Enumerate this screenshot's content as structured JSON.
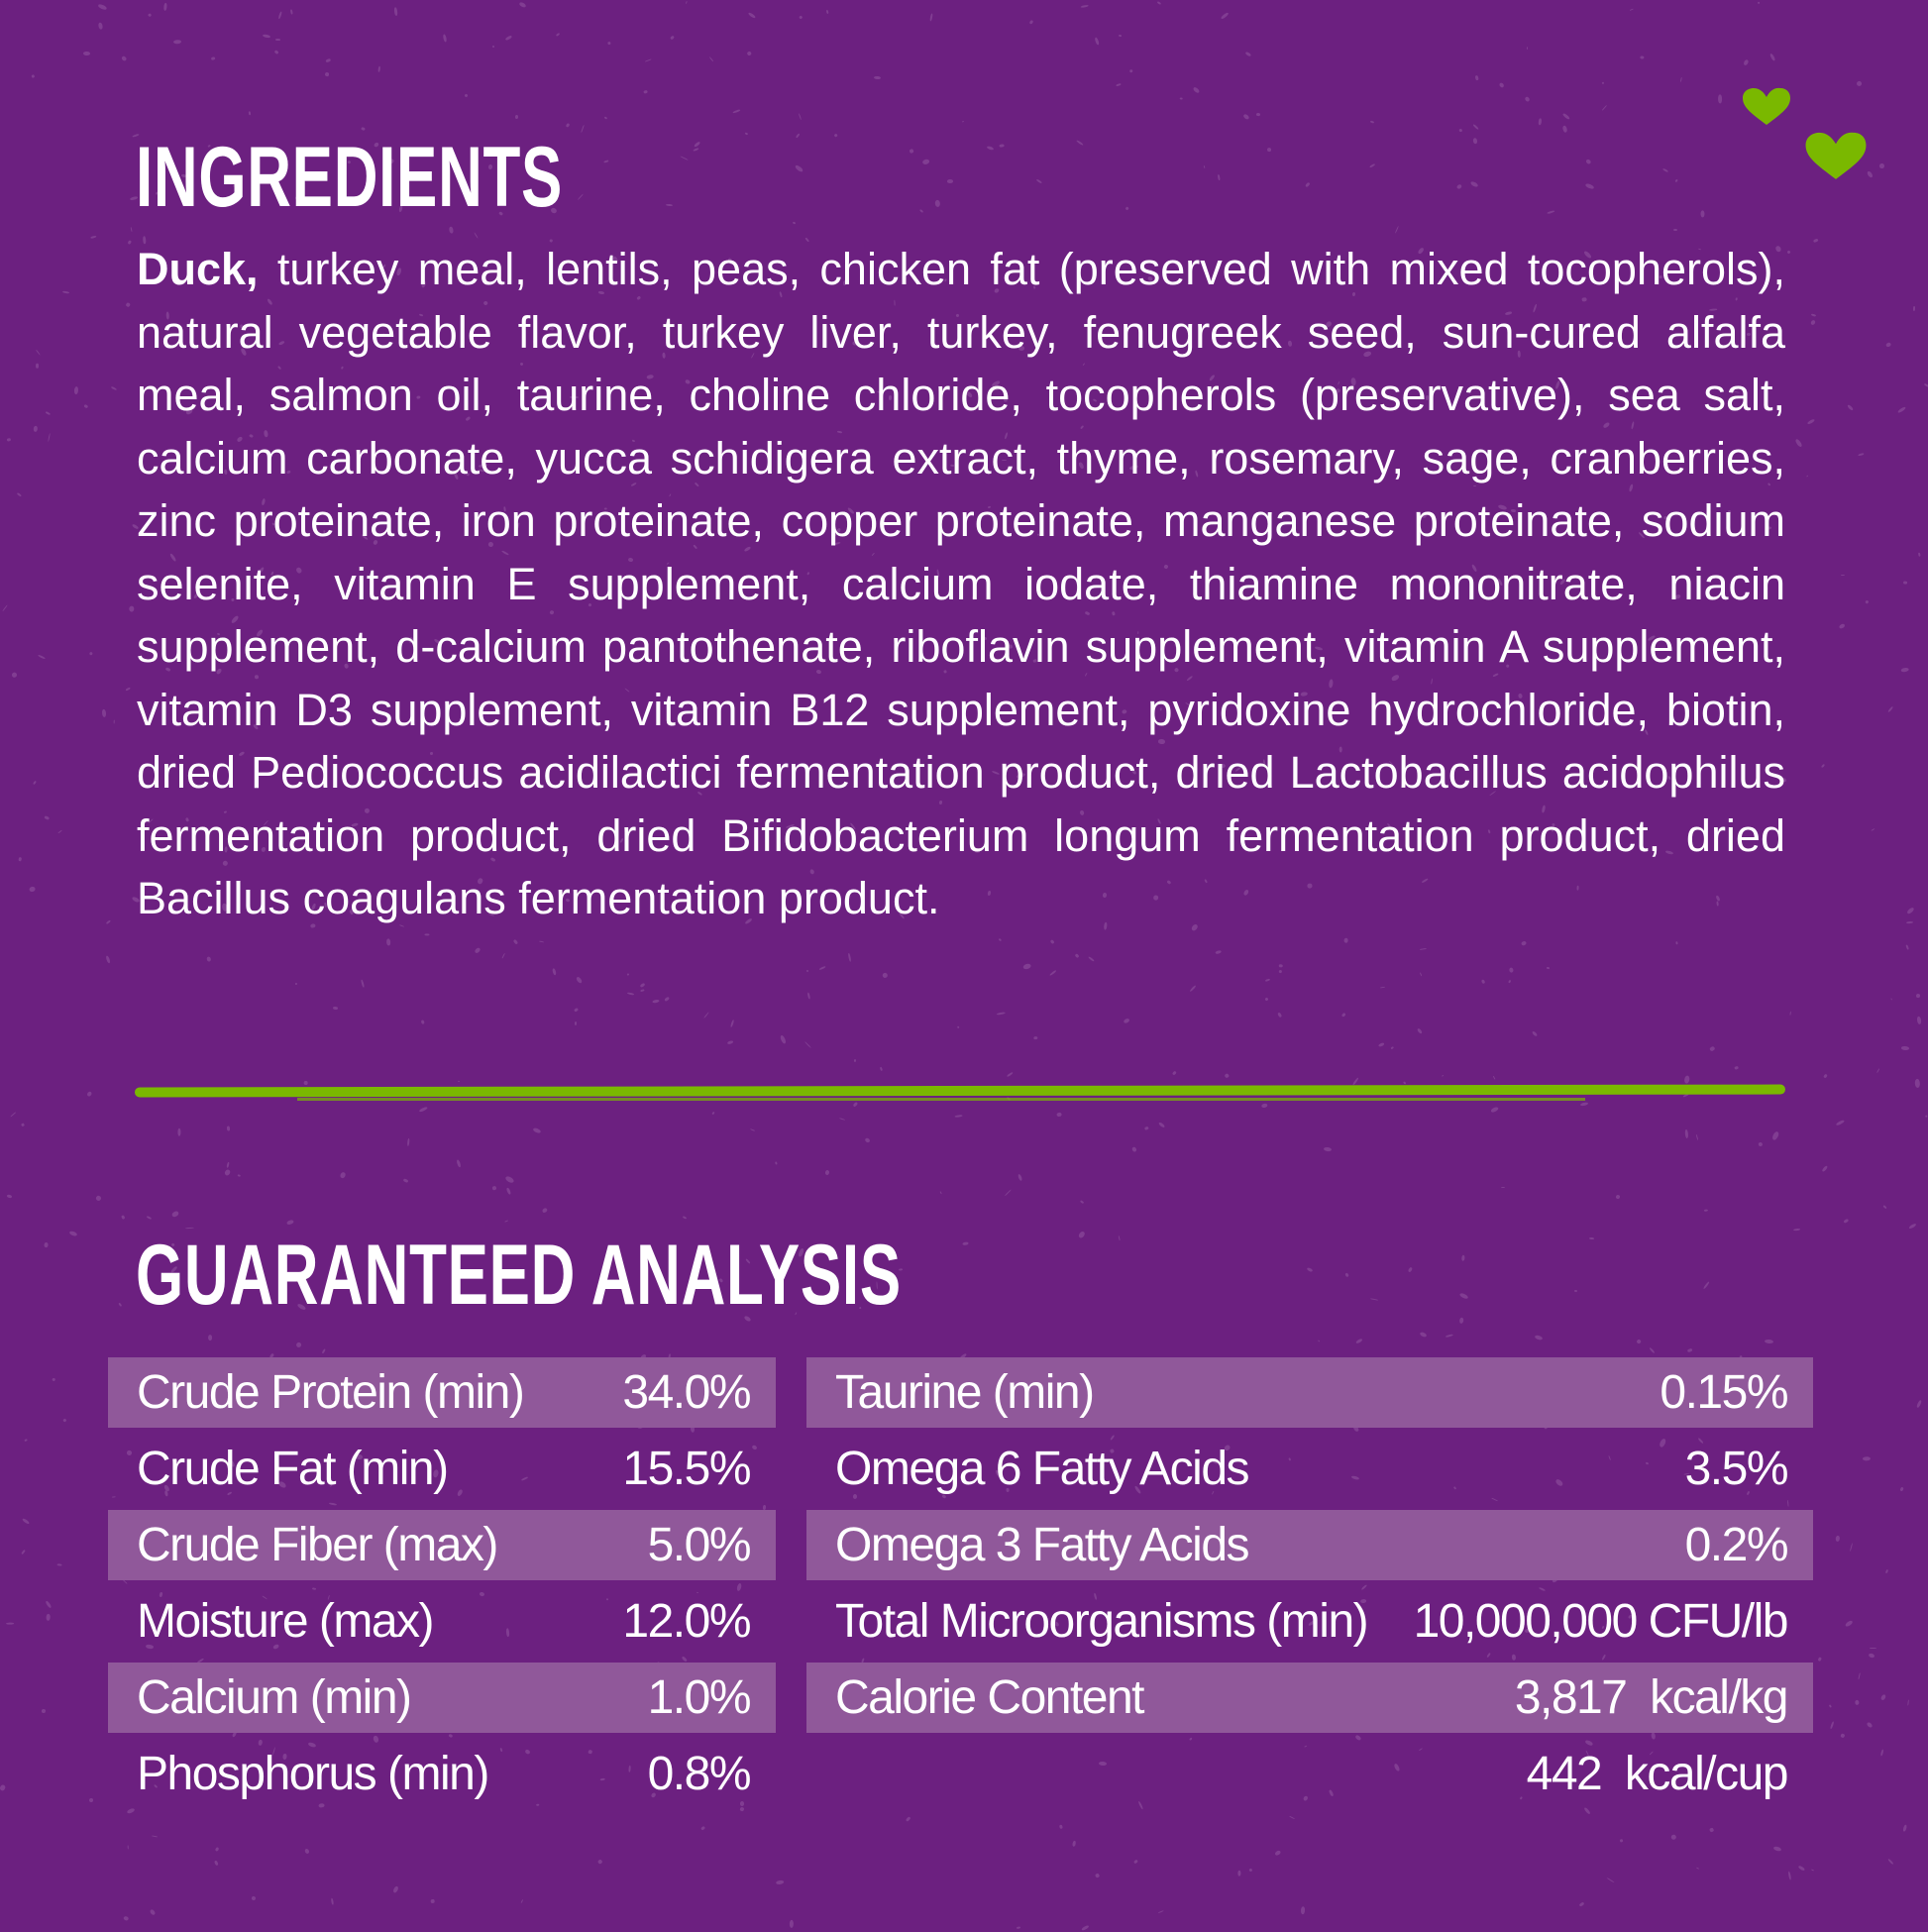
{
  "ingredients": {
    "title": "INGREDIENTS",
    "lead": "Duck,",
    "text": " turkey meal, lentils, peas, chicken fat (preserved with mixed tocopherols), natural vegetable flavor, turkey liver, turkey, fenugreek seed, sun-cured alfalfa meal, salmon oil, taurine, choline chloride, tocopherols (preservative), sea salt, calcium carbonate, yucca schidigera extract, thyme, rosemary, sage, cranberries, zinc proteinate, iron proteinate, copper proteinate, manganese proteinate, sodium selenite, vitamin E supplement, calcium iodate, thiamine mononitrate, niacin supplement, d-calcium pantothenate, riboflavin supplement, vitamin A supplement, vitamin D3 supplement, vitamin B12 supplement, pyridoxine hydrochloride, biotin, dried Pediococcus acidilactici fermentation product, dried Lactobacillus acidophilus fermentation product, dried Bifidobacterium longum fermentation product, dried Bacillus coagulans fermentation product."
  },
  "analysis": {
    "title": "GUARANTEED ANALYSIS",
    "left": [
      {
        "label": "Crude Protein (min)",
        "value": "34.0%"
      },
      {
        "label": "Crude Fat (min)",
        "value": "15.5%"
      },
      {
        "label": "Crude Fiber (max)",
        "value": "5.0%"
      },
      {
        "label": "Moisture (max)",
        "value": "12.0%"
      },
      {
        "label": "Calcium (min)",
        "value": "1.0%"
      },
      {
        "label": "Phosphorus (min)",
        "value": "0.8%"
      }
    ],
    "right": [
      {
        "label": "Taurine (min)",
        "value": "0.15%"
      },
      {
        "label": "Omega 6 Fatty Acids",
        "value": "3.5%"
      },
      {
        "label": "Omega 3 Fatty Acids",
        "value": "0.2%"
      },
      {
        "label": "Total Microorganisms (min)",
        "value": "10,000,000 CFU/lb"
      },
      {
        "label": "Calorie Content",
        "value": "3,817  kcal/kg"
      },
      {
        "label": "",
        "value": "442  kcal/cup"
      }
    ]
  },
  "colors": {
    "background": "#6c2080",
    "row_band": "#90589a",
    "accent_green": "#7ab800"
  },
  "icons": [
    "heart-icon",
    "heart-icon"
  ]
}
